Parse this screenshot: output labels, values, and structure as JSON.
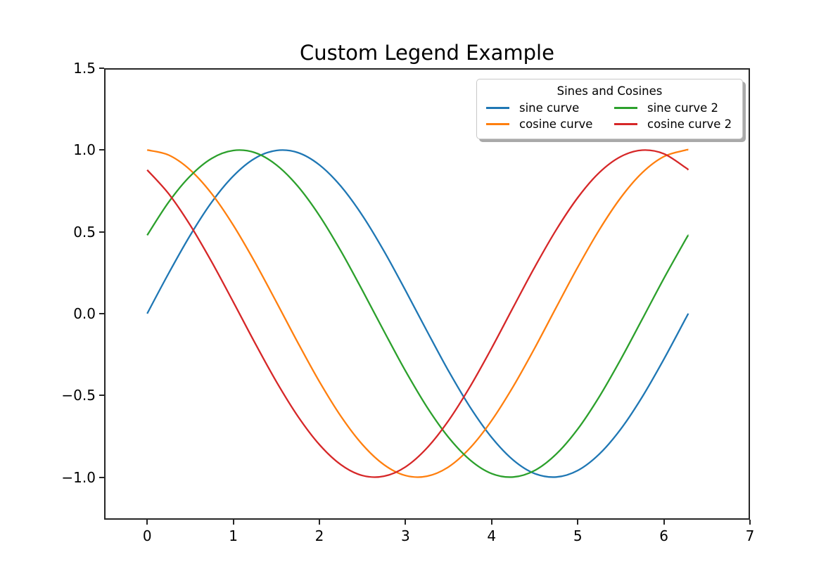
{
  "figure": {
    "title": "Custom Legend Example",
    "background": "#ffffff"
  },
  "axes": {
    "xlim": [
      -0.5,
      7.0
    ],
    "ylim": [
      -1.26,
      1.5
    ],
    "x_tick_values": [
      0,
      1,
      2,
      3,
      4,
      5,
      6,
      7
    ],
    "x_tick_labels": [
      "0",
      "1",
      "2",
      "3",
      "4",
      "5",
      "6",
      "7"
    ],
    "y_tick_values": [
      1.5,
      1.0,
      0.5,
      0.0,
      -0.5,
      -1.0
    ],
    "y_tick_labels": [
      "1.5",
      "1.0",
      "0.5",
      "0.0",
      "−0.5",
      "−1.0"
    ],
    "spine_color": "#262626",
    "grid": false
  },
  "legend": {
    "title": "Sines and Cosines",
    "position": "upper right",
    "columns": 2,
    "shadow": true,
    "entries": [
      {
        "label": "sine curve",
        "color": "#1f77b4"
      },
      {
        "label": "cosine curve",
        "color": "#ff7f0e"
      },
      {
        "label": "sine curve 2",
        "color": "#2ca02c"
      },
      {
        "label": "cosine curve 2",
        "color": "#d62728"
      }
    ]
  },
  "chart_data": {
    "type": "line",
    "title": "Custom Legend Example",
    "xlabel": "",
    "ylabel": "",
    "xlim": [
      -0.5,
      7.0
    ],
    "ylim": [
      -1.26,
      1.5
    ],
    "grid": false,
    "legend_position": "upper right",
    "legend_title": "Sines and Cosines",
    "line_width": 2.3,
    "x": [
      0,
      0.25,
      0.5,
      0.75,
      1,
      1.25,
      1.5,
      1.75,
      2,
      2.25,
      2.5,
      2.75,
      3,
      3.25,
      3.5,
      3.75,
      4,
      4.25,
      4.5,
      4.75,
      5,
      5.25,
      5.5,
      5.75,
      6,
      6.25,
      6.283
    ],
    "series": [
      {
        "name": "sine curve",
        "color": "#1f77b4",
        "formula": "sin(x)",
        "y": [
          0.0,
          0.247,
          0.479,
          0.682,
          0.841,
          0.949,
          0.997,
          0.984,
          0.909,
          0.778,
          0.599,
          0.382,
          0.141,
          -0.108,
          -0.351,
          -0.572,
          -0.757,
          -0.895,
          -0.978,
          -0.999,
          -0.959,
          -0.859,
          -0.706,
          -0.508,
          -0.279,
          -0.033,
          0.0
        ]
      },
      {
        "name": "cosine curve",
        "color": "#ff7f0e",
        "formula": "cos(x)",
        "y": [
          1.0,
          0.969,
          0.878,
          0.732,
          0.54,
          0.315,
          0.071,
          -0.178,
          -0.416,
          -0.628,
          -0.801,
          -0.924,
          -0.99,
          -0.994,
          -0.937,
          -0.821,
          -0.654,
          -0.446,
          -0.211,
          0.038,
          0.284,
          0.512,
          0.709,
          0.862,
          0.96,
          0.999,
          1.0
        ]
      },
      {
        "name": "sine curve 2",
        "color": "#2ca02c",
        "formula": "sin(x+0.5)",
        "y": [
          0.479,
          0.682,
          0.841,
          0.949,
          0.997,
          0.984,
          0.909,
          0.778,
          0.599,
          0.382,
          0.141,
          -0.108,
          -0.351,
          -0.572,
          -0.757,
          -0.895,
          -0.978,
          -0.999,
          -0.959,
          -0.859,
          -0.706,
          -0.508,
          -0.279,
          -0.033,
          0.215,
          0.45,
          0.479
        ]
      },
      {
        "name": "cosine curve 2",
        "color": "#d62728",
        "formula": "cos(x+0.5)",
        "y": [
          0.878,
          0.732,
          0.54,
          0.315,
          0.071,
          -0.178,
          -0.416,
          -0.628,
          -0.801,
          -0.924,
          -0.99,
          -0.994,
          -0.937,
          -0.821,
          -0.654,
          -0.446,
          -0.211,
          0.038,
          0.284,
          0.512,
          0.709,
          0.862,
          0.96,
          0.999,
          0.977,
          0.893,
          0.878
        ]
      }
    ]
  }
}
